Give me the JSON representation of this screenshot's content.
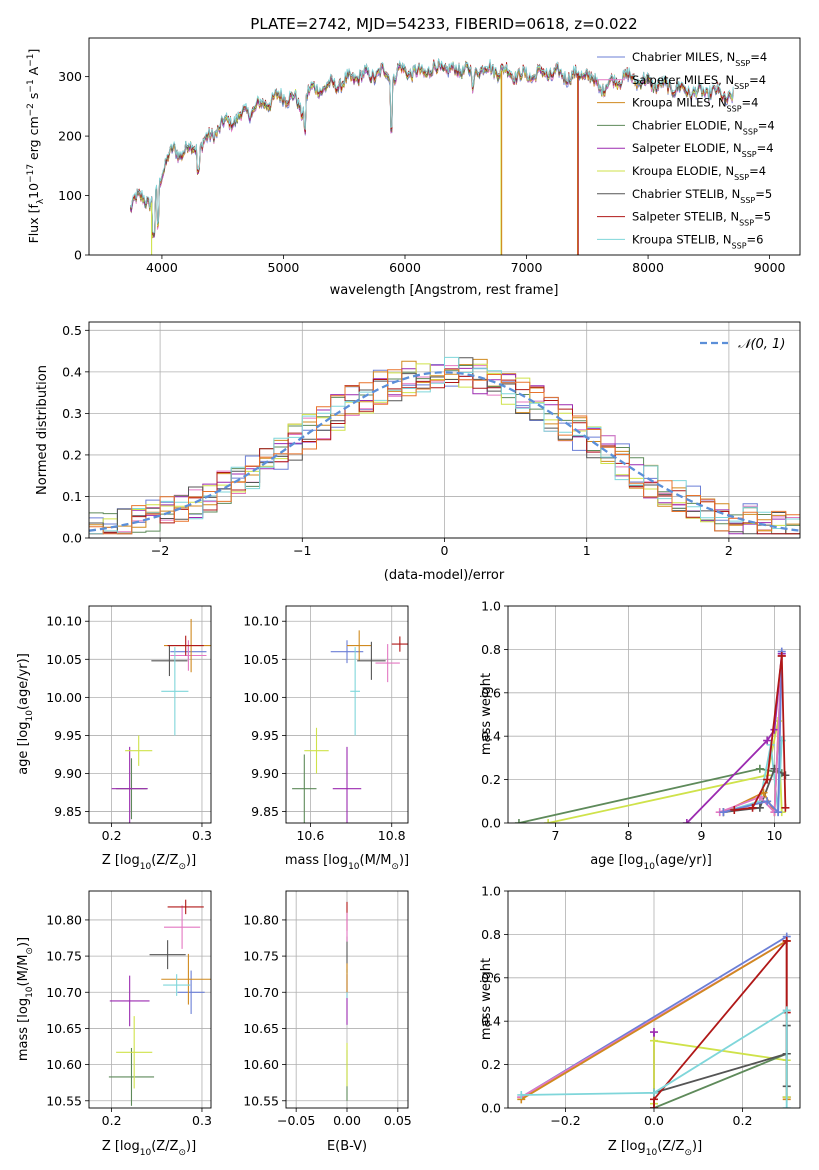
{
  "colors": {
    "Chabrier MILES": "#6b7fd6",
    "Salpeter MILES": "#e377c2",
    "Kroupa MILES": "#d08a1f",
    "Chabrier ELODIE": "#5e8a5a",
    "Salpeter ELODIE": "#9b2ab0",
    "Kroupa ELODIE": "#cfe24a",
    "Chabrier STELIB": "#555555",
    "Salpeter STELIB": "#b01818",
    "Kroupa STELIB": "#7fd6da",
    "gauss": "#5b8fd8",
    "hist_extra": "#e8742c"
  },
  "spectrum": {
    "title": "PLATE=2742, MJD=54233, FIBERID=0618, z=0.022",
    "xlabel": "wavelength [Angstrom, rest frame]",
    "ylabel_main": "Flux [f",
    "ylabel_sub": "λ",
    "ylabel_rest": "10",
    "ylabel_exp": "−17",
    "ylabel_tail": " erg cm",
    "ylabel_exp2": "−2",
    "ylabel_tail2": " s",
    "ylabel_exp3": "−1",
    "ylabel_tail3": " A",
    "ylabel_exp4": "−1",
    "ylabel_end": "]",
    "legend": [
      {
        "model": "Chabrier MILES",
        "label": "Chabrier MILES, N",
        "n": "4"
      },
      {
        "model": "Salpeter MILES",
        "label": "Salpeter MILES, N",
        "n": "4"
      },
      {
        "model": "Kroupa MILES",
        "label": "Kroupa MILES, N",
        "n": "4"
      },
      {
        "model": "Chabrier ELODIE",
        "label": "Chabrier ELODIE, N",
        "n": "4"
      },
      {
        "model": "Salpeter ELODIE",
        "label": "Salpeter ELODIE, N",
        "n": "4"
      },
      {
        "model": "Kroupa ELODIE",
        "label": "Kroupa ELODIE, N",
        "n": "4"
      },
      {
        "model": "Chabrier STELIB",
        "label": "Chabrier STELIB, N",
        "n": "5"
      },
      {
        "model": "Salpeter STELIB",
        "label": "Salpeter STELIB, N",
        "n": "5"
      },
      {
        "model": "Kroupa STELIB",
        "label": "Kroupa STELIB, N",
        "n": "6"
      }
    ],
    "legend_sub": "SSP"
  },
  "chart_data": [
    {
      "type": "line",
      "xlim": [
        3400,
        9250
      ],
      "ylim": [
        0,
        365
      ],
      "xticks": [
        4000,
        5000,
        6000,
        7000,
        8000,
        9000
      ],
      "yticks": [
        0,
        100,
        200,
        300
      ],
      "continuum": [
        [
          3740,
          80
        ],
        [
          3800,
          95
        ],
        [
          3850,
          100
        ],
        [
          3900,
          85
        ],
        [
          3950,
          95
        ],
        [
          4000,
          140
        ],
        [
          4050,
          165
        ],
        [
          4100,
          175
        ],
        [
          4150,
          170
        ],
        [
          4200,
          180
        ],
        [
          4300,
          180
        ],
        [
          4400,
          200
        ],
        [
          4500,
          220
        ],
        [
          4600,
          228
        ],
        [
          4700,
          240
        ],
        [
          4800,
          250
        ],
        [
          4900,
          260
        ],
        [
          5000,
          268
        ],
        [
          5100,
          262
        ],
        [
          5150,
          240
        ],
        [
          5200,
          275
        ],
        [
          5300,
          280
        ],
        [
          5400,
          285
        ],
        [
          5500,
          290
        ],
        [
          5600,
          300
        ],
        [
          5700,
          302
        ],
        [
          5800,
          305
        ],
        [
          5850,
          308
        ],
        [
          5890,
          290
        ],
        [
          5950,
          312
        ],
        [
          6000,
          310
        ],
        [
          6100,
          305
        ],
        [
          6200,
          310
        ],
        [
          6300,
          315
        ],
        [
          6400,
          310
        ],
        [
          6500,
          315
        ],
        [
          6563,
          298
        ],
        [
          6600,
          315
        ],
        [
          6700,
          312
        ],
        [
          6800,
          310
        ],
        [
          6900,
          305
        ],
        [
          7000,
          300
        ],
        [
          7100,
          305
        ],
        [
          7200,
          305
        ],
        [
          7300,
          302
        ],
        [
          7400,
          300
        ],
        [
          7500,
          305
        ],
        [
          7600,
          280
        ],
        [
          7700,
          290
        ],
        [
          7800,
          300
        ],
        [
          7900,
          295
        ],
        [
          8000,
          290
        ],
        [
          8100,
          285
        ],
        [
          8200,
          282
        ],
        [
          8300,
          278
        ],
        [
          8400,
          272
        ],
        [
          8500,
          275
        ],
        [
          8600,
          270
        ],
        [
          8700,
          262
        ]
      ],
      "spikes": [
        {
          "model": "Kroupa ELODIE",
          "x": 3915,
          "ymin": 0
        },
        {
          "model": "Kroupa ELODIE",
          "x": 6790,
          "ymin": 0
        },
        {
          "model": "Kroupa MILES",
          "x": 6795,
          "ymin": 0
        },
        {
          "model": "Kroupa MILES",
          "x": 7420,
          "ymin": 0
        },
        {
          "model": "Salpeter STELIB",
          "x": 7425,
          "ymin": 0
        }
      ]
    },
    {
      "type": "histogram",
      "xlabel": "(data-model)/error",
      "ylabel": "Normed distribution",
      "xlim": [
        -2.5,
        2.5
      ],
      "ylim": [
        0,
        0.52
      ],
      "xticks": [
        -2,
        -1,
        0,
        1,
        2
      ],
      "yticks": [
        0.0,
        0.1,
        0.2,
        0.3,
        0.4,
        0.5
      ],
      "legend": "𝒩(0, 1)"
    },
    {
      "type": "errorbar",
      "xlabel_main": "Z [log",
      "xlabel_sub": "10",
      "xlabel_tail": "(Z/Z",
      "xlabel_sun": "⊙",
      "xlabel_end": ")]",
      "ylabel_main": "age  [log",
      "ylabel_sub": "10",
      "ylabel_tail": "(age/yr)]",
      "xlim": [
        0.175,
        0.31
      ],
      "ylim": [
        9.835,
        10.12
      ],
      "xticks": [
        0.2,
        0.3
      ],
      "yticks": [
        9.85,
        9.9,
        9.95,
        10.0,
        10.05,
        10.1
      ],
      "points": [
        {
          "model": "Chabrier MILES",
          "x": 0.285,
          "y": 10.06,
          "xe": 0.02,
          "ye": 0.01
        },
        {
          "model": "Salpeter MILES",
          "x": 0.285,
          "y": 10.055,
          "xe": 0.02,
          "ye": 0.02
        },
        {
          "model": "Kroupa MILES",
          "x": 0.288,
          "y": 10.068,
          "xe": 0.03,
          "ye": 0.035
        },
        {
          "model": "Chabrier ELODIE",
          "x": 0.222,
          "y": 9.88,
          "xe": 0.017,
          "ye": 0.04
        },
        {
          "model": "Salpeter ELODIE",
          "x": 0.22,
          "y": 9.88,
          "xe": 0.02,
          "ye": 0.055
        },
        {
          "model": "Kroupa ELODIE",
          "x": 0.23,
          "y": 9.93,
          "xe": 0.015,
          "ye": 0.02
        },
        {
          "model": "Chabrier STELIB",
          "x": 0.264,
          "y": 10.048,
          "xe": 0.02,
          "ye": 0.02
        },
        {
          "model": "Salpeter STELIB",
          "x": 0.282,
          "y": 10.068,
          "xe": 0.02,
          "ye": 0.013
        },
        {
          "model": "Kroupa STELIB",
          "x": 0.27,
          "y": 10.008,
          "xe": 0.015,
          "ye": 0.058
        }
      ]
    },
    {
      "type": "errorbar",
      "xlabel_main": "mass [log",
      "xlabel_sub": "10",
      "xlabel_tail": "(M/M",
      "xlabel_sun": "⊙",
      "xlabel_end": ")]",
      "xlim": [
        10.54,
        10.84
      ],
      "ylim": [
        9.835,
        10.12
      ],
      "xticks": [
        10.6,
        10.8
      ],
      "yticks": [
        9.85,
        9.9,
        9.95,
        10.0,
        10.05,
        10.1
      ],
      "points": [
        {
          "model": "Chabrier MILES",
          "x": 10.69,
          "y": 10.06,
          "xe": 0.04,
          "ye": 0.015
        },
        {
          "model": "Salpeter MILES",
          "x": 10.79,
          "y": 10.045,
          "xe": 0.03,
          "ye": 0.025
        },
        {
          "model": "Kroupa MILES",
          "x": 10.72,
          "y": 10.068,
          "xe": 0.03,
          "ye": 0.02
        },
        {
          "model": "Chabrier ELODIE",
          "x": 10.585,
          "y": 9.88,
          "xe": 0.03,
          "ye": 0.045
        },
        {
          "model": "Salpeter ELODIE",
          "x": 10.69,
          "y": 9.88,
          "xe": 0.035,
          "ye": 0.055
        },
        {
          "model": "Kroupa ELODIE",
          "x": 10.615,
          "y": 9.93,
          "xe": 0.03,
          "ye": 0.03
        },
        {
          "model": "Chabrier STELIB",
          "x": 10.75,
          "y": 10.048,
          "xe": 0.035,
          "ye": 0.025
        },
        {
          "model": "Salpeter STELIB",
          "x": 10.82,
          "y": 10.07,
          "xe": 0.02,
          "ye": 0.01
        },
        {
          "model": "Kroupa STELIB",
          "x": 10.71,
          "y": 10.008,
          "xe": 0.012,
          "ye": 0.058
        }
      ]
    },
    {
      "type": "line",
      "xlabel_main": "age  [log",
      "xlabel_sub": "10",
      "xlabel_tail": "(age/yr)]",
      "ylabel": "mass weight",
      "xlim": [
        6.35,
        10.35
      ],
      "ylim": [
        0.0,
        1.0
      ],
      "xticks": [
        7,
        8,
        9,
        10
      ],
      "yticks": [
        0.0,
        0.2,
        0.4,
        0.6,
        0.8,
        1.0
      ],
      "series": [
        {
          "model": "Chabrier ELODIE",
          "x": [
            6.5,
            9.8,
            10.1
          ],
          "y": [
            0.0,
            0.25,
            0.23
          ]
        },
        {
          "model": "Kroupa ELODIE",
          "x": [
            6.9,
            9.9,
            10.05,
            10.1
          ],
          "y": [
            0.0,
            0.22,
            0.47,
            0.05
          ]
        },
        {
          "model": "Salpeter ELODIE",
          "x": [
            8.8,
            9.9,
            10.0,
            10.1
          ],
          "y": [
            0.0,
            0.38,
            0.43,
            0.78
          ]
        },
        {
          "model": "Kroupa STELIB",
          "x": [
            9.3,
            9.8,
            9.95,
            10.05,
            10.1
          ],
          "y": [
            0.05,
            0.1,
            0.36,
            0.05,
            0.38
          ]
        },
        {
          "model": "Chabrier STELIB",
          "x": [
            9.3,
            9.8,
            10.0,
            10.15
          ],
          "y": [
            0.05,
            0.07,
            0.25,
            0.22
          ]
        },
        {
          "model": "Kroupa MILES",
          "x": [
            9.3,
            9.85,
            10.0,
            10.1
          ],
          "y": [
            0.05,
            0.14,
            0.05,
            0.77
          ]
        },
        {
          "model": "Salpeter MILES",
          "x": [
            9.25,
            9.8,
            10.0,
            10.1
          ],
          "y": [
            0.05,
            0.12,
            0.05,
            0.77
          ]
        },
        {
          "model": "Chabrier MILES",
          "x": [
            9.3,
            9.9,
            10.05,
            10.1
          ],
          "y": [
            0.05,
            0.1,
            0.05,
            0.79
          ]
        },
        {
          "model": "Salpeter STELIB",
          "x": [
            9.45,
            9.7,
            9.9,
            10.1,
            10.15
          ],
          "y": [
            0.06,
            0.07,
            0.2,
            0.77,
            0.07
          ]
        }
      ]
    },
    {
      "type": "errorbar",
      "ylabel_main": "mass [log",
      "ylabel_sub": "10",
      "ylabel_tail": "(M/M",
      "ylabel_sun": "⊙",
      "ylabel_end": ")]",
      "xlabel_main": "Z [log",
      "xlabel_sub": "10",
      "xlabel_tail": "(Z/Z",
      "xlabel_sun": "⊙",
      "xlabel_end": ")]",
      "xlim": [
        0.175,
        0.31
      ],
      "ylim": [
        10.54,
        10.84
      ],
      "xticks": [
        0.2,
        0.3
      ],
      "yticks": [
        10.55,
        10.6,
        10.65,
        10.7,
        10.75,
        10.8
      ],
      "points": [
        {
          "model": "Chabrier MILES",
          "x": 0.288,
          "y": 10.7,
          "xe": 0.015,
          "ye": 0.03
        },
        {
          "model": "Salpeter MILES",
          "x": 0.278,
          "y": 10.79,
          "xe": 0.02,
          "ye": 0.03
        },
        {
          "model": "Kroupa MILES",
          "x": 0.285,
          "y": 10.718,
          "xe": 0.03,
          "ye": 0.035
        },
        {
          "model": "Chabrier ELODIE",
          "x": 0.222,
          "y": 10.583,
          "xe": 0.025,
          "ye": 0.04
        },
        {
          "model": "Salpeter ELODIE",
          "x": 0.22,
          "y": 10.688,
          "xe": 0.022,
          "ye": 0.035
        },
        {
          "model": "Kroupa ELODIE",
          "x": 0.225,
          "y": 10.617,
          "xe": 0.02,
          "ye": 0.05
        },
        {
          "model": "Chabrier STELIB",
          "x": 0.262,
          "y": 10.752,
          "xe": 0.02,
          "ye": 0.02
        },
        {
          "model": "Salpeter STELIB",
          "x": 0.282,
          "y": 10.818,
          "xe": 0.02,
          "ye": 0.01
        },
        {
          "model": "Kroupa STELIB",
          "x": 0.272,
          "y": 10.71,
          "xe": 0.015,
          "ye": 0.015
        }
      ]
    },
    {
      "type": "errorbar",
      "xlabel": "E(B-V)",
      "xlim": [
        -0.06,
        0.06
      ],
      "ylim": [
        10.54,
        10.84
      ],
      "xticks": [
        -0.05,
        0.0,
        0.05
      ],
      "xtick_labels": [
        "−0.05",
        "0.00",
        "0.05"
      ],
      "yticks": [
        10.55,
        10.6,
        10.65,
        10.7,
        10.75,
        10.8
      ],
      "points": [
        {
          "model": "Chabrier ELODIE",
          "x": 0.0,
          "y": 10.585,
          "xe": 0,
          "ye": 0.035
        },
        {
          "model": "Kroupa ELODIE",
          "x": 0.0,
          "y": 10.6,
          "xe": 0,
          "ye": 0.03
        },
        {
          "model": "Salpeter ELODIE",
          "x": 0.0,
          "y": 10.69,
          "xe": 0,
          "ye": 0.035
        },
        {
          "model": "Kroupa STELIB",
          "x": 0.0,
          "y": 10.712,
          "xe": 0,
          "ye": 0.02
        },
        {
          "model": "Chabrier STELIB",
          "x": 0.0,
          "y": 10.752,
          "xe": 0,
          "ye": 0.025
        },
        {
          "model": "Salpeter STELIB",
          "x": 0.0,
          "y": 10.805,
          "xe": 0,
          "ye": 0.02
        },
        {
          "model": "Salpeter MILES",
          "x": 0.0,
          "y": 10.79,
          "xe": 0,
          "ye": 0.02
        },
        {
          "model": "Kroupa MILES",
          "x": 0.0,
          "y": 10.72,
          "xe": 0,
          "ye": 0.02
        }
      ]
    },
    {
      "type": "line",
      "ylabel": "mass weight",
      "xlabel_main": "Z [log",
      "xlabel_sub": "10",
      "xlabel_tail": "(Z/Z",
      "xlabel_sun": "⊙",
      "xlabel_end": ")]",
      "xlim": [
        -0.33,
        0.33
      ],
      "ylim": [
        0.0,
        1.0
      ],
      "xticks": [
        -0.2,
        0.0,
        0.2
      ],
      "xtick_labels": [
        "−0.2",
        "0.0",
        "0.2"
      ],
      "yticks": [
        0.0,
        0.2,
        0.4,
        0.6,
        0.8,
        1.0
      ],
      "series": [
        {
          "model": "Chabrier MILES",
          "x": [
            -0.3,
            0.3,
            0.3
          ],
          "y": [
            0.05,
            0.79,
            0.05
          ]
        },
        {
          "model": "Salpeter MILES",
          "x": [
            -0.3,
            0.3,
            0.3
          ],
          "y": [
            0.05,
            0.77,
            0.05
          ]
        },
        {
          "model": "Kroupa MILES",
          "x": [
            -0.3,
            0.3,
            0.3
          ],
          "y": [
            0.04,
            0.77,
            0.04
          ]
        },
        {
          "model": "Salpeter ELODIE",
          "x": [
            0.0,
            0.0
          ],
          "y": [
            0.0,
            0.35
          ]
        },
        {
          "model": "Kroupa ELODIE",
          "x": [
            0.0,
            0.0,
            0.3,
            0.3
          ],
          "y": [
            0.02,
            0.31,
            0.22,
            0.05
          ]
        },
        {
          "model": "Chabrier ELODIE",
          "x": [
            0.0,
            0.3
          ],
          "y": [
            0.0,
            0.25
          ]
        },
        {
          "model": "Chabrier STELIB",
          "x": [
            0.0,
            0.3,
            0.3,
            0.3
          ],
          "y": [
            0.07,
            0.25,
            0.38,
            0.1
          ]
        },
        {
          "model": "Salpeter STELIB",
          "x": [
            0.0,
            0.0,
            0.3,
            0.3
          ],
          "y": [
            0.0,
            0.04,
            0.77,
            0.44
          ]
        },
        {
          "model": "Kroupa STELIB",
          "x": [
            -0.3,
            0.0,
            0.3,
            0.3
          ],
          "y": [
            0.06,
            0.07,
            0.45,
            0.0
          ]
        }
      ]
    }
  ]
}
